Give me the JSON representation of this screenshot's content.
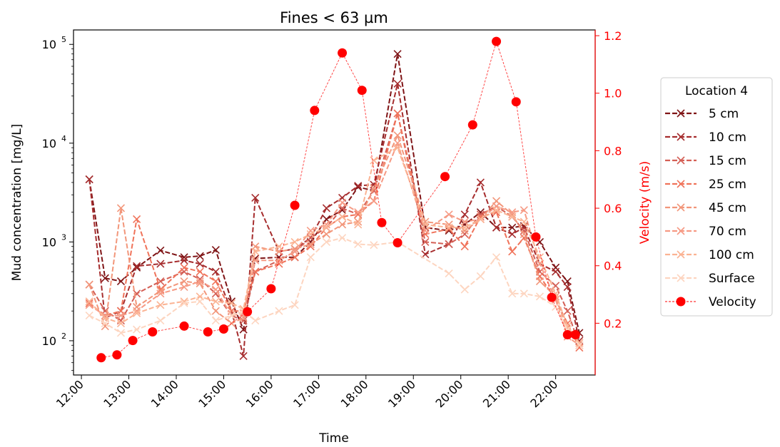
{
  "chart_data": {
    "type": "line",
    "title": "Fines < 63 µm",
    "xlabel": "Time",
    "ylabel": "Mud concentration [mg/L]",
    "y2label": "Velocity (m/s)",
    "y_scale": "log",
    "ylim": [
      45,
      140000
    ],
    "y2lim": [
      0.02,
      1.22
    ],
    "xlim": [
      "11:50",
      "22:50"
    ],
    "x_ticks": [
      "12:00",
      "13:00",
      "14:00",
      "15:00",
      "16:00",
      "17:00",
      "18:00",
      "19:00",
      "20:00",
      "21:00",
      "22:00"
    ],
    "y_ticks": [
      {
        "value": 100,
        "base": "10",
        "exp": "2"
      },
      {
        "value": 1000,
        "base": "10",
        "exp": "3"
      },
      {
        "value": 10000,
        "base": "10",
        "exp": "4"
      },
      {
        "value": 100000,
        "base": "10",
        "exp": "5"
      }
    ],
    "y2_ticks": [
      "0.2",
      "0.4",
      "0.6",
      "0.8",
      "1.0",
      "1.2"
    ],
    "legend_title": "Location 4",
    "legend_placement": "right, outside plot",
    "grid": false,
    "series": [
      {
        "name": "5 cm",
        "color": "#7f1416",
        "axis": "left",
        "marker": "x",
        "x": [
          "12:10",
          "12:30",
          "12:50",
          "13:10",
          "13:40",
          "14:10",
          "14:30",
          "14:50",
          "15:10",
          "15:25",
          "15:40",
          "16:10",
          "16:30",
          "16:50",
          "17:10",
          "17:30",
          "17:50",
          "18:10",
          "18:40",
          "19:15",
          "19:45",
          "20:05",
          "20:25",
          "20:45",
          "21:05",
          "21:20",
          "21:40",
          "22:00",
          "22:15",
          "22:30"
        ],
        "values": [
          4300,
          430,
          400,
          550,
          820,
          700,
          720,
          830,
          250,
          130,
          680,
          700,
          700,
          1000,
          1700,
          2100,
          3600,
          3300,
          80000,
          1400,
          1300,
          1500,
          2000,
          1400,
          1400,
          1450,
          1000,
          550,
          400,
          120
        ]
      },
      {
        "name": "10 cm",
        "color": "#a62d2e",
        "axis": "left",
        "marker": "x",
        "x": [
          "12:10",
          "12:30",
          "12:50",
          "13:10",
          "13:40",
          "14:10",
          "14:30",
          "14:50",
          "15:10",
          "15:25",
          "15:40",
          "16:10",
          "16:30",
          "16:50",
          "17:10",
          "17:30",
          "17:50",
          "18:10",
          "18:40",
          "19:15",
          "19:45",
          "20:05",
          "20:25",
          "20:45",
          "21:05",
          "21:20",
          "21:40",
          "22:00",
          "22:15",
          "22:30"
        ],
        "values": [
          4300,
          170,
          200,
          570,
          600,
          650,
          600,
          500,
          200,
          70,
          2800,
          800,
          850,
          1100,
          2200,
          2800,
          3700,
          3800,
          40000,
          750,
          950,
          1900,
          4000,
          1400,
          1200,
          1400,
          600,
          500,
          350,
          100
        ]
      },
      {
        "name": "15 cm",
        "color": "#d45f55",
        "axis": "left",
        "marker": "x",
        "x": [
          "12:10",
          "12:30",
          "12:50",
          "13:10",
          "13:40",
          "14:10",
          "14:30",
          "14:50",
          "15:10",
          "15:25",
          "15:40",
          "16:10",
          "16:30",
          "16:50",
          "17:10",
          "17:30",
          "17:50",
          "18:10",
          "18:40",
          "19:15",
          "19:45",
          "20:05",
          "20:25",
          "20:45",
          "21:05",
          "21:20",
          "21:40",
          "22:00",
          "22:15",
          "22:30"
        ],
        "values": [
          370,
          200,
          160,
          300,
          400,
          500,
          420,
          300,
          180,
          160,
          500,
          650,
          800,
          1100,
          1400,
          2200,
          1900,
          3300,
          20000,
          1000,
          950,
          1200,
          1900,
          2300,
          1800,
          1300,
          500,
          360,
          200,
          90
        ]
      },
      {
        "name": "25 cm",
        "color": "#f0735a",
        "axis": "left",
        "marker": "x",
        "x": [
          "12:10",
          "12:30",
          "12:50",
          "13:10",
          "13:40",
          "14:10",
          "14:30",
          "14:50",
          "15:10",
          "15:25",
          "15:40",
          "16:10",
          "16:30",
          "16:50",
          "17:10",
          "17:30",
          "17:50",
          "18:10",
          "18:40",
          "19:15",
          "19:45",
          "20:05",
          "20:25",
          "20:45",
          "21:05",
          "21:20",
          "21:40",
          "22:00",
          "22:15",
          "22:30"
        ],
        "values": [
          240,
          180,
          200,
          1700,
          330,
          550,
          500,
          400,
          200,
          200,
          500,
          600,
          700,
          900,
          1400,
          1800,
          1900,
          2600,
          20000,
          1200,
          1350,
          900,
          1800,
          2000,
          800,
          1100,
          450,
          260,
          150,
          85
        ]
      },
      {
        "name": "45 cm",
        "color": "#f2967a",
        "axis": "left",
        "marker": "x",
        "x": [
          "12:10",
          "12:30",
          "12:50",
          "13:10",
          "13:40",
          "14:10",
          "14:30",
          "14:50",
          "15:10",
          "15:25",
          "15:40",
          "16:10",
          "16:30",
          "16:50",
          "17:10",
          "17:30",
          "17:50",
          "18:10",
          "18:40",
          "19:15",
          "19:45",
          "20:05",
          "20:25",
          "20:45",
          "21:05",
          "21:20",
          "21:40",
          "22:00",
          "22:15",
          "22:30"
        ],
        "values": [
          370,
          140,
          2200,
          220,
          320,
          400,
          380,
          200,
          150,
          170,
          900,
          800,
          850,
          950,
          1200,
          1500,
          1600,
          3500,
          12000,
          1600,
          1500,
          1300,
          1700,
          2600,
          1900,
          1200,
          400,
          280,
          130,
          95
        ]
      },
      {
        "name": "70 cm",
        "color": "#f69a84",
        "axis": "left",
        "marker": "x",
        "x": [
          "12:10",
          "12:30",
          "12:50",
          "13:10",
          "13:40",
          "14:10",
          "14:30",
          "14:50",
          "15:10",
          "15:25",
          "15:40",
          "16:10",
          "16:30",
          "16:50",
          "17:10",
          "17:30",
          "17:50",
          "18:10",
          "18:40",
          "19:15",
          "19:45",
          "20:05",
          "20:25",
          "20:45",
          "21:05",
          "21:20",
          "21:40",
          "22:00",
          "22:15",
          "22:30"
        ],
        "values": [
          230,
          180,
          180,
          200,
          300,
          350,
          400,
          330,
          180,
          190,
          650,
          650,
          800,
          1300,
          1500,
          2500,
          2000,
          2600,
          10000,
          1300,
          1900,
          1600,
          1700,
          2300,
          2000,
          2100,
          600,
          260,
          110,
          90
        ]
      },
      {
        "name": "100 cm",
        "color": "#fbb393",
        "axis": "left",
        "marker": "x",
        "x": [
          "12:10",
          "12:30",
          "12:50",
          "13:10",
          "13:40",
          "14:10",
          "14:30",
          "14:50",
          "15:10",
          "15:25",
          "15:40",
          "16:10",
          "16:30",
          "16:50",
          "17:10",
          "17:30",
          "17:50",
          "18:10",
          "18:40",
          "19:15",
          "19:45",
          "20:05",
          "20:25",
          "20:45",
          "21:05",
          "21:20",
          "21:40",
          "22:00",
          "22:15",
          "22:30"
        ],
        "values": [
          250,
          170,
          150,
          190,
          230,
          250,
          280,
          250,
          240,
          210,
          800,
          900,
          1000,
          1200,
          1400,
          1800,
          1500,
          6700,
          9000,
          1500,
          1400,
          1400,
          1700,
          2100,
          1800,
          1600,
          700,
          300,
          140,
          95
        ]
      },
      {
        "name": "Surface",
        "color": "#fdd5c0",
        "axis": "left",
        "marker": "x",
        "x": [
          "12:10",
          "12:30",
          "12:50",
          "13:10",
          "13:40",
          "14:10",
          "14:30",
          "14:50",
          "15:10",
          "15:25",
          "15:40",
          "16:10",
          "16:30",
          "16:50",
          "17:10",
          "17:30",
          "17:50",
          "18:10",
          "18:40",
          "19:45",
          "20:05",
          "20:25",
          "20:45",
          "21:05",
          "21:20",
          "21:40",
          "22:00",
          "22:15",
          "22:30"
        ],
        "values": [
          180,
          150,
          120,
          130,
          160,
          240,
          250,
          160,
          180,
          200,
          160,
          200,
          230,
          700,
          1000,
          1100,
          950,
          930,
          1000,
          480,
          330,
          450,
          700,
          300,
          300,
          280,
          220,
          130,
          90
        ]
      },
      {
        "name": "Velocity",
        "color": "#ff0000",
        "axis": "right",
        "marker": "o",
        "x": [
          "12:25",
          "12:45",
          "13:05",
          "13:30",
          "14:10",
          "14:40",
          "15:00",
          "15:30",
          "16:00",
          "16:30",
          "16:55",
          "17:30",
          "17:55",
          "18:20",
          "18:40",
          "19:40",
          "20:15",
          "20:45",
          "21:10",
          "21:35",
          "21:55",
          "22:15",
          "22:25"
        ],
        "values": [
          0.08,
          0.09,
          0.14,
          0.17,
          0.19,
          0.17,
          0.18,
          0.24,
          0.32,
          0.61,
          0.94,
          1.14,
          1.01,
          0.55,
          0.48,
          0.71,
          0.89,
          1.18,
          0.97,
          0.5,
          0.29,
          0.16,
          0.16
        ]
      }
    ]
  }
}
